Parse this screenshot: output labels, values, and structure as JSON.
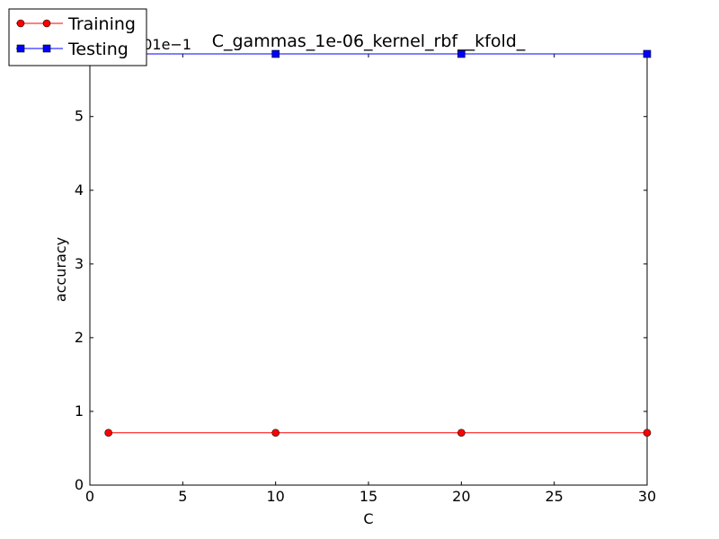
{
  "chart_data": {
    "type": "line",
    "title": "C_gammas_1e-06_kernel_rbf__kfold_",
    "xlabel": "C",
    "ylabel": "accuracy",
    "y_offset_text": "+7.58001e−1",
    "xlim": [
      0,
      30
    ],
    "ylim": [
      0,
      5.85
    ],
    "x_ticks": [
      0,
      5,
      10,
      15,
      20,
      25,
      30
    ],
    "y_ticks": [
      0,
      1,
      2,
      3,
      4,
      5
    ],
    "x": [
      1,
      10,
      20,
      30
    ],
    "series": [
      {
        "name": "Training",
        "values": [
          0.71,
          0.71,
          0.71,
          0.71
        ],
        "color": "#ff0000",
        "marker": "circle"
      },
      {
        "name": "Testing",
        "values": [
          5.85,
          5.85,
          5.85,
          5.85
        ],
        "color": "#0000ff",
        "marker": "square"
      }
    ],
    "grid": false,
    "legend_position": "top-left outside"
  }
}
